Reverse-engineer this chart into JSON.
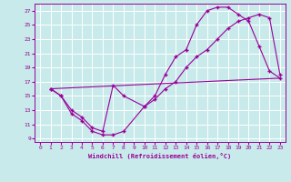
{
  "xlabel": "Windchill (Refroidissement éolien,°C)",
  "bg_color": "#c8eaea",
  "line_color": "#990099",
  "grid_color": "#ffffff",
  "xlim": [
    -0.5,
    23.5
  ],
  "ylim": [
    8.5,
    28
  ],
  "yticks": [
    9,
    11,
    13,
    15,
    17,
    19,
    21,
    23,
    25,
    27
  ],
  "xticks": [
    0,
    1,
    2,
    3,
    4,
    5,
    6,
    7,
    8,
    9,
    10,
    11,
    12,
    13,
    14,
    15,
    16,
    17,
    18,
    19,
    20,
    21,
    22,
    23
  ],
  "curve1_x": [
    1,
    2,
    3,
    4,
    5,
    6,
    7,
    8,
    10,
    11,
    12,
    13,
    14,
    15,
    16,
    17,
    18,
    19,
    20,
    21,
    22,
    23
  ],
  "curve1_y": [
    16,
    15,
    12.5,
    11.5,
    10,
    9.5,
    9.5,
    10,
    13.5,
    15,
    18,
    20.5,
    21.5,
    25,
    27,
    27.5,
    27.5,
    26.5,
    25.5,
    22,
    18.5,
    17.5
  ],
  "curve2_x": [
    1,
    2,
    3,
    4,
    5,
    6,
    7,
    8,
    10,
    11,
    12,
    13,
    14,
    15,
    16,
    17,
    18,
    19,
    20,
    21,
    22,
    23
  ],
  "curve2_y": [
    16,
    15,
    13,
    12,
    10.5,
    10,
    16.5,
    15,
    13.5,
    14.5,
    16,
    17,
    19,
    20.5,
    21.5,
    23,
    24.5,
    25.5,
    26,
    26.5,
    26,
    18
  ],
  "curve3_x": [
    1,
    23
  ],
  "curve3_y": [
    16,
    17.5
  ],
  "marker": "+"
}
